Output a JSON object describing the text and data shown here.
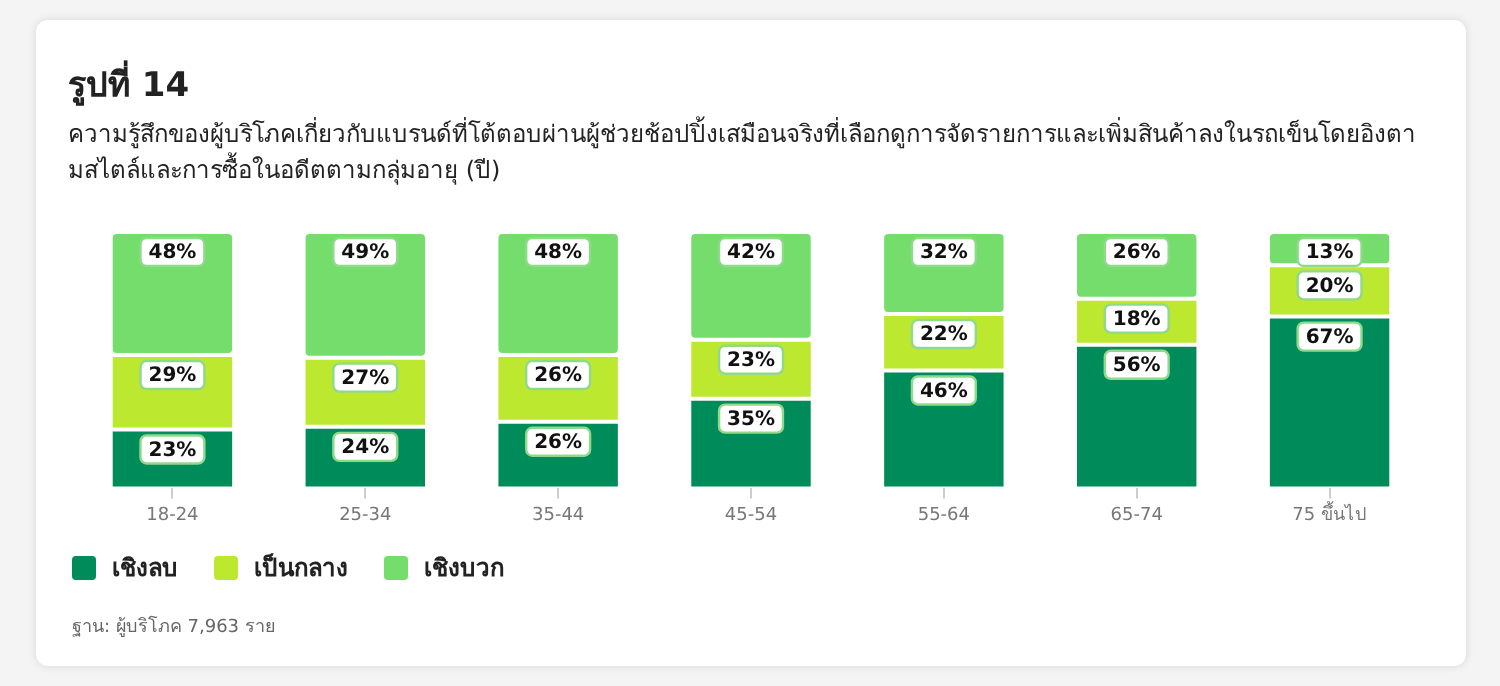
{
  "chart_data": {
    "type": "bar",
    "stacked": true,
    "title": "รูปที่ 14",
    "subtitle": "ความรู้สึกของผู้บริโภคเกี่ยวกับแบรนด์ที่โต้ตอบผ่านผู้ช่วยช้อปปิ้งเสมือนจริงที่เลือกดูการจัดรายการและเพิ่มสินค้าลงในรถเข็นโดยอิงตามสไตล์และการซื้อในอดีตตามกลุ่มอายุ (ปี)",
    "categories": [
      "18-24",
      "25-34",
      "35-44",
      "45-54",
      "55-64",
      "65-74",
      "75 ขึ้นไป"
    ],
    "series": [
      {
        "name": "เชิงลบ",
        "color": "#008c5a",
        "values": [
          23,
          24,
          26,
          35,
          46,
          56,
          67
        ],
        "value_labels": [
          "23%",
          "24%",
          "26%",
          "35%",
          "46%",
          "56%",
          "67%"
        ]
      },
      {
        "name": "เป็นกลาง",
        "color": "#bde830",
        "values": [
          29,
          27,
          26,
          23,
          22,
          18,
          20
        ],
        "value_labels": [
          "29%",
          "27%",
          "26%",
          "23%",
          "22%",
          "18%",
          "20%"
        ]
      },
      {
        "name": "เชิงบวก",
        "color": "#74dd6c",
        "values": [
          48,
          49,
          48,
          42,
          32,
          26,
          13
        ],
        "value_labels": [
          "48%",
          "49%",
          "48%",
          "42%",
          "32%",
          "26%",
          "13%"
        ]
      }
    ],
    "legend": "bottom",
    "tick_labels": "x",
    "annotations": [
      "ฐาน: ผู้บริโภค 7,963 ราย"
    ]
  }
}
